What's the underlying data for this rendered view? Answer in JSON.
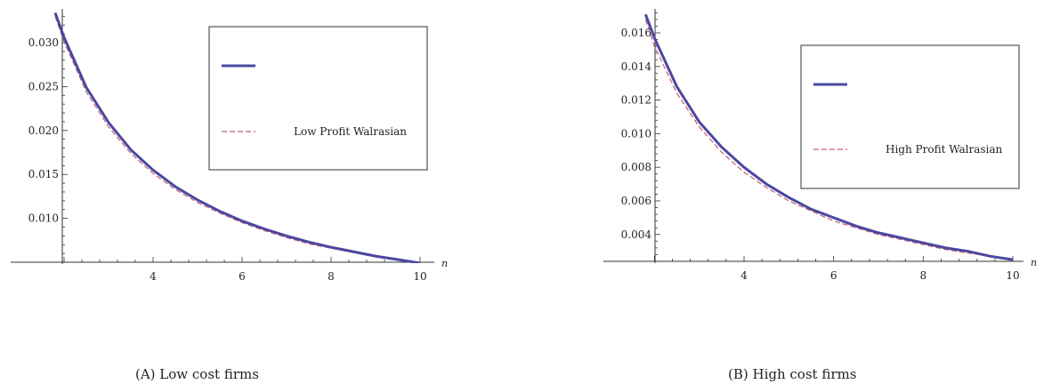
{
  "chart_data": [
    {
      "type": "line",
      "caption": "(A)  Low cost firms",
      "xlabel": "n",
      "ylabel": "",
      "xlim": [
        1.8,
        10.2
      ],
      "ylim": [
        0.0048,
        0.0337
      ],
      "x_ticks": [
        "4",
        "6",
        "8",
        "10"
      ],
      "y_ticks": [
        "0.010",
        "0.015",
        "0.020",
        "0.025",
        "0.030"
      ],
      "legend_position": "top-right",
      "grid": false,
      "series": [
        {
          "name": "",
          "color": "#4B47A0",
          "style": "solid",
          "x": [
            1.8,
            2,
            2.5,
            3,
            3.5,
            4,
            4.5,
            5,
            5.5,
            6,
            6.5,
            7,
            7.5,
            8,
            8.5,
            9,
            9.5,
            10
          ],
          "y": [
            0.0334,
            0.0306,
            0.0249,
            0.0209,
            0.0178,
            0.0155,
            0.0136,
            0.0121,
            0.0108,
            0.0097,
            0.0088,
            0.008,
            0.0073,
            0.0067,
            0.0062,
            0.0057,
            0.0053,
            0.0049
          ]
        },
        {
          "name": "Low Profit Walrasian",
          "color": "#C06070",
          "style": "dashed",
          "x": [
            1.8,
            2,
            2.5,
            3,
            3.5,
            4,
            4.5,
            5,
            5.5,
            6,
            6.5,
            7,
            7.5,
            8,
            8.5,
            9,
            9.5,
            10
          ],
          "y": [
            0.033,
            0.0301,
            0.0244,
            0.0204,
            0.0174,
            0.0151,
            0.0133,
            0.0118,
            0.0106,
            0.0095,
            0.0086,
            0.0078,
            0.0071,
            0.0066,
            0.0061,
            0.0056,
            0.0052,
            0.0049
          ]
        }
      ]
    },
    {
      "type": "line",
      "caption": "(B)  High cost firms",
      "xlabel": "n",
      "ylabel": "",
      "xlim": [
        1.8,
        10.2
      ],
      "ylim": [
        0.0023,
        0.0172
      ],
      "x_ticks": [
        "4",
        "6",
        "8",
        "10"
      ],
      "y_ticks": [
        "0.004",
        "0.006",
        "0.008",
        "0.010",
        "0.012",
        "0.014",
        "0.016"
      ],
      "legend_position": "top-right",
      "grid": false,
      "series": [
        {
          "name": "",
          "color": "#4B47A0",
          "style": "solid",
          "x": [
            1.8,
            2,
            2.5,
            3,
            3.5,
            4,
            4.5,
            5,
            5.5,
            6,
            6.5,
            7,
            7.5,
            8,
            8.5,
            9,
            9.5,
            10
          ],
          "y": [
            0.0171,
            0.0157,
            0.0128,
            0.0107,
            0.0092,
            0.008,
            0.007,
            0.0062,
            0.0055,
            0.005,
            0.0045,
            0.0041,
            0.0038,
            0.0035,
            0.0032,
            0.003,
            0.0027,
            0.0025
          ]
        },
        {
          "name": "High Profit Walrasian",
          "color": "#C06070",
          "style": "dashed",
          "x": [
            1.8,
            2,
            2.5,
            3,
            3.5,
            4,
            4.5,
            5,
            5.5,
            6,
            6.5,
            7,
            7.5,
            8,
            8.5,
            9,
            9.5,
            10
          ],
          "y": [
            0.0168,
            0.0152,
            0.0124,
            0.0104,
            0.0089,
            0.0077,
            0.0068,
            0.006,
            0.0054,
            0.0048,
            0.0044,
            0.004,
            0.0037,
            0.0034,
            0.0031,
            0.0029,
            0.0027,
            0.0025
          ]
        }
      ]
    }
  ]
}
